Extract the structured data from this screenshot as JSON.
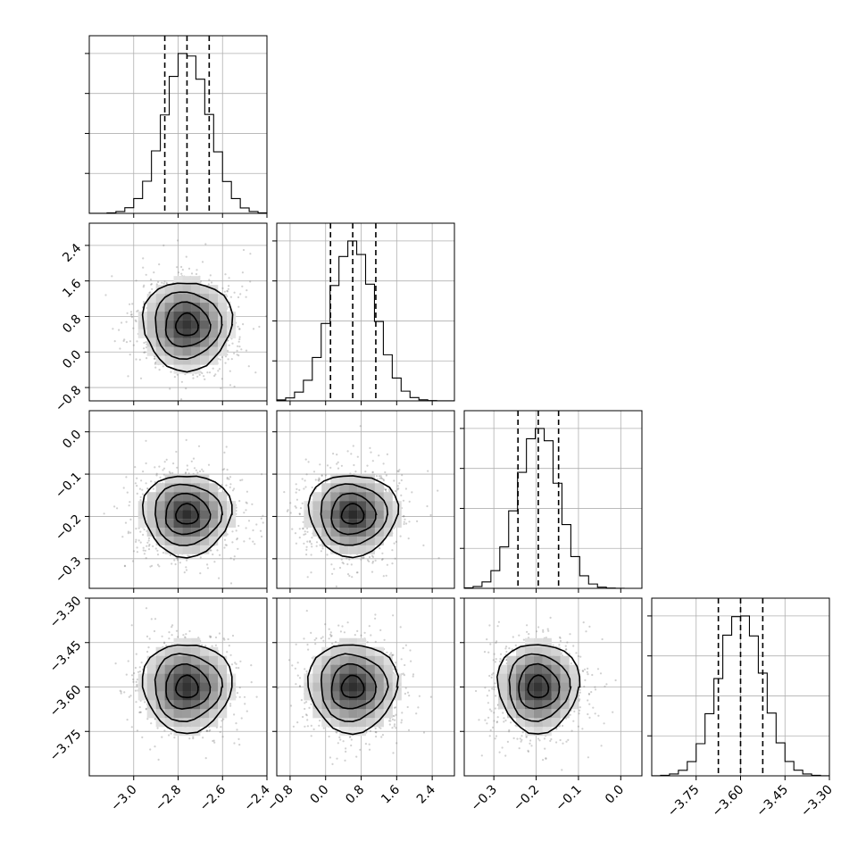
{
  "chart_data": {
    "type": "corner",
    "grid": true,
    "title": "",
    "parameters": [
      {
        "index": 0,
        "range": [
          -3.2,
          -2.4
        ],
        "ticks": [
          -3.0,
          -2.8,
          -2.6,
          -2.4
        ],
        "tick_labels": [
          "−3.0",
          "−2.8",
          "−2.6",
          "−2.4"
        ],
        "mean": -2.76,
        "sd": 0.1,
        "quantiles": [
          -2.86,
          -2.76,
          -2.66
        ]
      },
      {
        "index": 1,
        "range": [
          -1.1,
          2.9
        ],
        "ticks": [
          -0.8,
          0.0,
          0.8,
          1.6,
          2.4
        ],
        "tick_labels": [
          "−0.8",
          "0.0",
          "0.8",
          "1.6",
          "2.4"
        ],
        "mean": 0.61,
        "sd": 0.5,
        "quantiles": [
          0.11,
          0.61,
          1.13
        ]
      },
      {
        "index": 2,
        "range": [
          -0.37,
          0.05
        ],
        "ticks": [
          -0.3,
          -0.2,
          -0.1,
          0.0
        ],
        "tick_labels": [
          "−0.3",
          "−0.2",
          "−0.1",
          "0.0"
        ],
        "mean": -0.195,
        "sd": 0.048,
        "quantiles": [
          -0.243,
          -0.195,
          -0.147
        ]
      },
      {
        "index": 3,
        "range": [
          -3.9,
          -3.3
        ],
        "ticks": [
          -3.75,
          -3.6,
          -3.45,
          -3.3
        ],
        "tick_labels": [
          "−3.75",
          "−3.60",
          "−3.45",
          "−3.30"
        ],
        "mean": -3.6,
        "sd": 0.075,
        "quantiles": [
          -3.675,
          -3.6,
          -3.525
        ]
      }
    ]
  }
}
